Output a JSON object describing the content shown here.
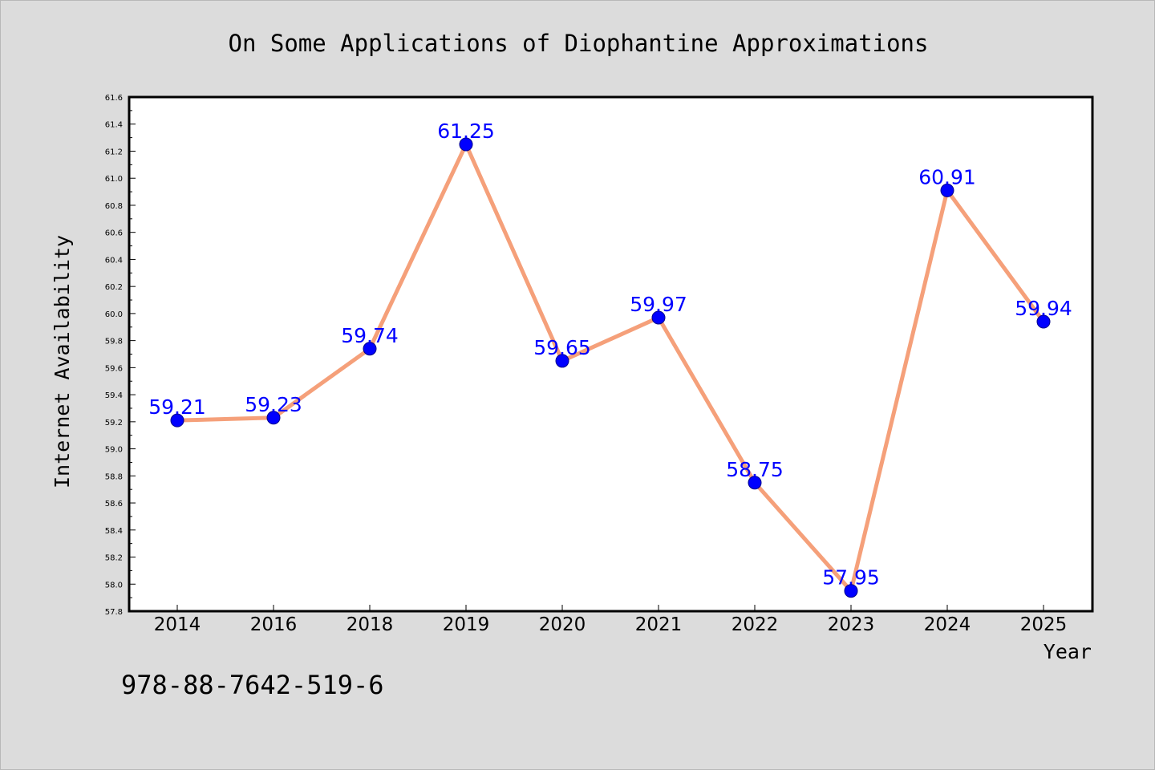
{
  "chart_data": {
    "type": "line",
    "title": "On Some Applications of Diophantine Approximations",
    "xlabel": "Year",
    "ylabel": "Internet Availability",
    "categories": [
      "2014",
      "2016",
      "2018",
      "2019",
      "2020",
      "2021",
      "2022",
      "2023",
      "2024",
      "2025"
    ],
    "series": [
      {
        "values": [
          59.21,
          59.23,
          59.74,
          61.25,
          59.65,
          59.97,
          58.75,
          57.95,
          60.91,
          59.94
        ],
        "data_labels": [
          "59.21",
          "59.23",
          "59.74",
          "61.25",
          "59.65",
          "59.97",
          "58.75",
          "57.95",
          "60.91",
          "59.94"
        ],
        "line_color": "#f5a07a",
        "marker_color": "#0000ff"
      }
    ],
    "ylim": [
      57.8,
      61.6
    ],
    "yticks": [
      "57.8",
      "58.0",
      "58.2",
      "58.4",
      "58.6",
      "58.8",
      "59.0",
      "59.2",
      "59.4",
      "59.6",
      "59.8",
      "60.0",
      "60.2",
      "60.4",
      "60.6",
      "60.8",
      "61.0",
      "61.2",
      "61.4",
      "61.6"
    ],
    "grid": false,
    "legend": "none"
  },
  "footer": {
    "isbn": "978-88-7642-519-6"
  }
}
